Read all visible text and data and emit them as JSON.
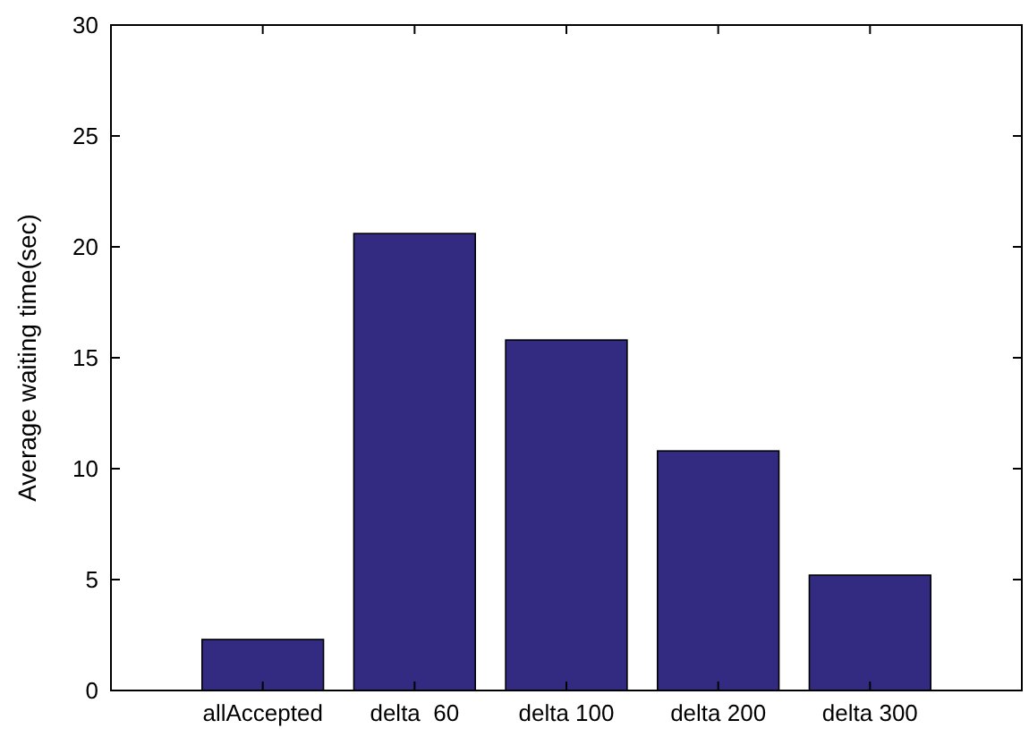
{
  "chart_data": {
    "type": "bar",
    "ylabel": "Average waiting time(sec)",
    "categories": [
      "allAccepted",
      "delta  60",
      "delta 100",
      "delta 200",
      "delta 300"
    ],
    "values": [
      2.3,
      20.6,
      15.8,
      10.8,
      5.2
    ],
    "color": "#332a82",
    "ylim": [
      0,
      30
    ],
    "yticks": [
      0,
      5,
      10,
      15,
      20,
      25,
      30
    ],
    "grid": false
  }
}
